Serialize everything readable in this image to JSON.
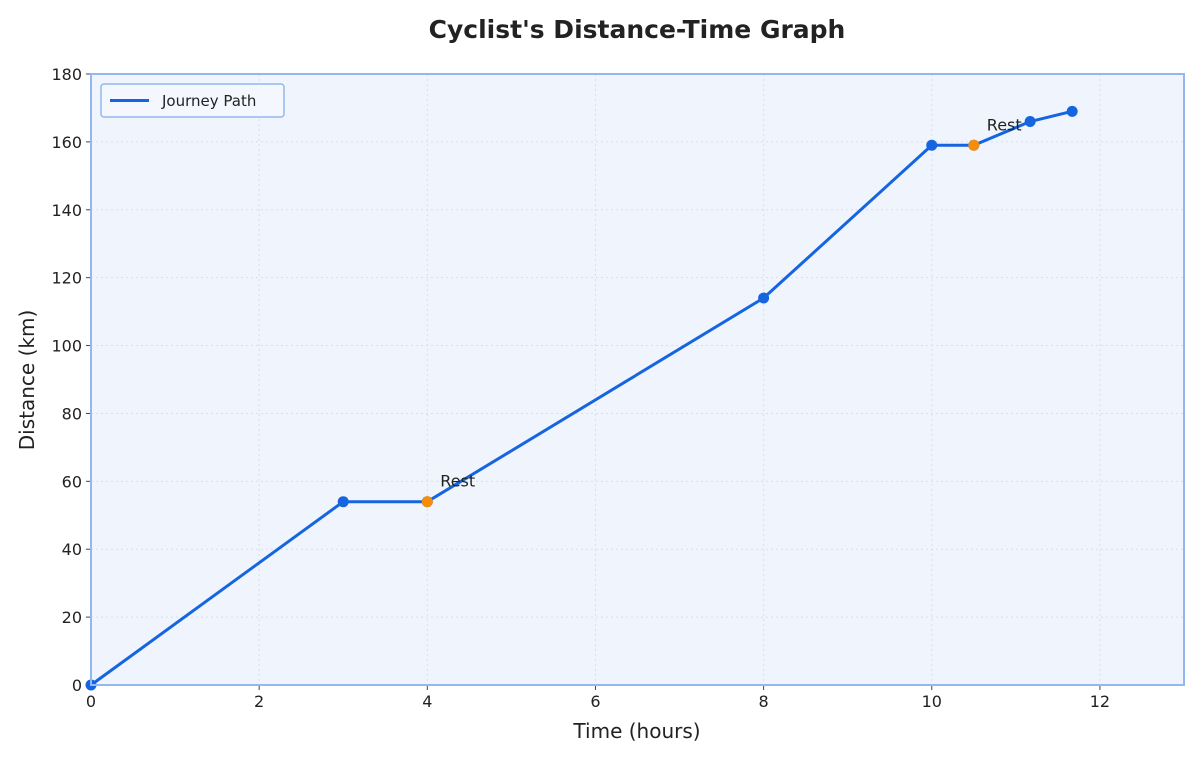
{
  "chart_data": {
    "type": "line",
    "title": "Cyclist's Distance-Time Graph",
    "xlabel": "Time (hours)",
    "ylabel": "Distance (km)",
    "xlim": [
      0,
      13
    ],
    "ylim": [
      0,
      180
    ],
    "xticks": [
      0,
      2,
      4,
      6,
      8,
      10,
      12
    ],
    "yticks": [
      0,
      20,
      40,
      60,
      80,
      100,
      120,
      140,
      160,
      180
    ],
    "grid": true,
    "legend_position": "top-left",
    "series": [
      {
        "name": "Journey Path",
        "color": "#1565e0",
        "points": [
          {
            "x": 0,
            "y": 0
          },
          {
            "x": 3,
            "y": 54
          },
          {
            "x": 4,
            "y": 54
          },
          {
            "x": 8,
            "y": 114
          },
          {
            "x": 10,
            "y": 159
          },
          {
            "x": 10.5,
            "y": 159
          },
          {
            "x": 11.17,
            "y": 166
          },
          {
            "x": 11.67,
            "y": 169
          }
        ]
      }
    ],
    "rest_points": [
      {
        "x": 4,
        "y": 54,
        "label": "Rest"
      },
      {
        "x": 10.5,
        "y": 159,
        "label": "Rest"
      }
    ],
    "colors": {
      "line": "#1565e0",
      "marker": "#1565e0",
      "rest_marker": "#f58c0a",
      "plot_bg": "#f0f5fd",
      "frame": "#93b8ee"
    }
  }
}
